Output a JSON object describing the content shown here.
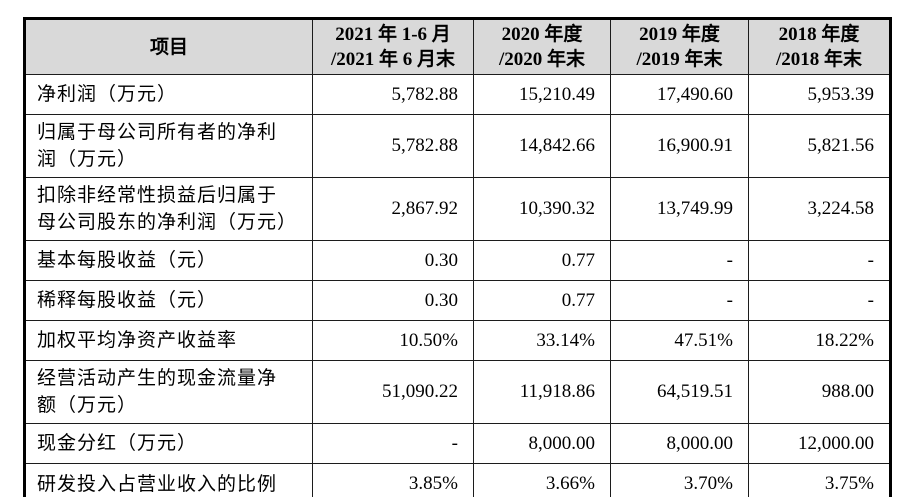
{
  "table": {
    "header": {
      "item_label": "项目",
      "periods": [
        {
          "line1": "2021 年 1-6 月",
          "line2": "/2021 年 6 月末"
        },
        {
          "line1": "2020 年度",
          "line2": "/2020 年末"
        },
        {
          "line1": "2019 年度",
          "line2": "/2019 年末"
        },
        {
          "line1": "2018 年度",
          "line2": "/2018 年末"
        }
      ]
    },
    "rows": [
      {
        "label": "净利润（万元）",
        "values": [
          "5,782.88",
          "15,210.49",
          "17,490.60",
          "5,953.39"
        ]
      },
      {
        "label": "归属于母公司所有者的净利润（万元）",
        "values": [
          "5,782.88",
          "14,842.66",
          "16,900.91",
          "5,821.56"
        ]
      },
      {
        "label": "扣除非经常性损益后归属于母公司股东的净利润（万元）",
        "values": [
          "2,867.92",
          "10,390.32",
          "13,749.99",
          "3,224.58"
        ]
      },
      {
        "label": "基本每股收益（元）",
        "values": [
          "0.30",
          "0.77",
          "-",
          "-"
        ]
      },
      {
        "label": "稀释每股收益（元）",
        "values": [
          "0.30",
          "0.77",
          "-",
          "-"
        ]
      },
      {
        "label": "加权平均净资产收益率",
        "values": [
          "10.50%",
          "33.14%",
          "47.51%",
          "18.22%"
        ]
      },
      {
        "label": "经营活动产生的现金流量净额（万元）",
        "values": [
          "51,090.22",
          "11,918.86",
          "64,519.51",
          "988.00"
        ]
      },
      {
        "label": "现金分红（万元）",
        "values": [
          "-",
          "8,000.00",
          "8,000.00",
          "12,000.00"
        ]
      },
      {
        "label": "研发投入占营业收入的比例",
        "values": [
          "3.85%",
          "3.66%",
          "3.70%",
          "3.75%"
        ]
      }
    ],
    "colors": {
      "header_bg": "#d9d9d9",
      "border": "#000000",
      "text": "#000000",
      "page_bg": "#ffffff"
    }
  },
  "chart_data": {
    "type": "table",
    "title": "",
    "columns": [
      "项目",
      "2021 年 1-6 月 /2021 年 6 月末",
      "2020 年度 /2020 年末",
      "2019 年度 /2019 年末",
      "2018 年度 /2018 年末"
    ],
    "rows": [
      [
        "净利润（万元）",
        "5,782.88",
        "15,210.49",
        "17,490.60",
        "5,953.39"
      ],
      [
        "归属于母公司所有者的净利润（万元）",
        "5,782.88",
        "14,842.66",
        "16,900.91",
        "5,821.56"
      ],
      [
        "扣除非经常性损益后归属于母公司股东的净利润（万元）",
        "2,867.92",
        "10,390.32",
        "13,749.99",
        "3,224.58"
      ],
      [
        "基本每股收益（元）",
        "0.30",
        "0.77",
        "-",
        "-"
      ],
      [
        "稀释每股收益（元）",
        "0.30",
        "0.77",
        "-",
        "-"
      ],
      [
        "加权平均净资产收益率",
        "10.50%",
        "33.14%",
        "47.51%",
        "18.22%"
      ],
      [
        "经营活动产生的现金流量净额（万元）",
        "51,090.22",
        "11,918.86",
        "64,519.51",
        "988.00"
      ],
      [
        "现金分红（万元）",
        "-",
        "8,000.00",
        "8,000.00",
        "12,000.00"
      ],
      [
        "研发投入占营业收入的比例",
        "3.85%",
        "3.66%",
        "3.70%",
        "3.75%"
      ]
    ]
  }
}
